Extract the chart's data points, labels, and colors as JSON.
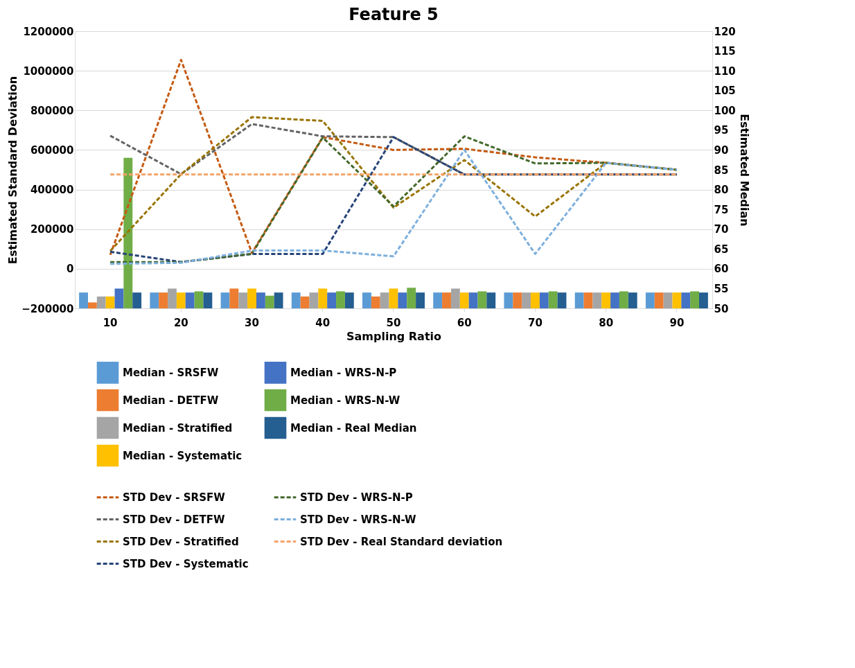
{
  "chart_data": {
    "type": "bar",
    "title": "Feature 5",
    "xlabel": "Sampling Ratio",
    "ylabel": "Estimated Standard Deviation",
    "y2label": "Estimated Median",
    "categories": [
      "10",
      "20",
      "30",
      "40",
      "50",
      "60",
      "70",
      "80",
      "90"
    ],
    "ylim": [
      -200000,
      1200000
    ],
    "yticks": [
      -200000,
      0,
      200000,
      400000,
      600000,
      800000,
      1000000,
      1200000
    ],
    "y2lim": [
      50,
      120
    ],
    "y2ticks": [
      50,
      55,
      60,
      65,
      70,
      75,
      80,
      85,
      90,
      95,
      100,
      105,
      110,
      115,
      120
    ],
    "grid": "y",
    "legend": "bottom",
    "series": [
      {
        "name": "Median - SRSFW",
        "axis": "y2",
        "color": "#5b9bd5",
        "values": [
          54,
          54,
          54,
          54,
          54,
          54,
          54,
          54,
          54
        ]
      },
      {
        "name": "Median - DETFW",
        "axis": "y2",
        "color": "#ed7d31",
        "values": [
          51.5,
          54,
          55,
          53,
          53,
          54,
          54,
          54,
          54
        ]
      },
      {
        "name": "Median - Stratified",
        "axis": "y2",
        "color": "#a5a5a5",
        "values": [
          53,
          55,
          54,
          54,
          54,
          55,
          54,
          54,
          54
        ]
      },
      {
        "name": "Median - Systematic",
        "axis": "y2",
        "color": "#ffc000",
        "values": [
          53,
          54,
          55,
          55,
          55,
          54,
          54,
          54,
          54
        ]
      },
      {
        "name": "Median - WRS-N-P",
        "axis": "y2",
        "color": "#4472c4",
        "values": [
          55,
          54,
          54,
          54,
          54,
          54,
          54,
          54,
          54
        ]
      },
      {
        "name": "Median - WRS-N-W",
        "axis": "y2",
        "color": "#70ad47",
        "values": [
          88,
          54.3,
          53.2,
          54.3,
          55.2,
          54.3,
          54.3,
          54.3,
          54.3
        ]
      },
      {
        "name": "Median - Real Median",
        "axis": "y2",
        "color": "#255e91",
        "values": [
          54,
          54,
          54,
          54,
          54,
          54,
          54,
          54,
          54
        ]
      },
      {
        "name": "STD Dev - SRSFW",
        "type": "line",
        "line_style": "dashed",
        "color": "#c55a11",
        "values": [
          70000,
          1055000,
          80000,
          665000,
          600000,
          606000,
          563000,
          535000,
          500000
        ]
      },
      {
        "name": "STD Dev - DETFW",
        "type": "line",
        "line_style": "dashed",
        "color": "#636363",
        "values": [
          672000,
          478000,
          731000,
          669000,
          665000,
          476000,
          476000,
          476000,
          476000
        ]
      },
      {
        "name": "STD Dev - Stratified",
        "type": "line",
        "line_style": "dashed",
        "color": "#997300",
        "values": [
          90000,
          478000,
          766000,
          747000,
          309000,
          549000,
          264000,
          535000,
          500000
        ]
      },
      {
        "name": "STD Dev - Systematic",
        "type": "line",
        "line_style": "dashed",
        "color": "#264478",
        "values": [
          86000,
          34000,
          75000,
          75000,
          665000,
          476000,
          476000,
          476000,
          476000
        ]
      },
      {
        "name": "STD Dev - WRS-N-P",
        "type": "line",
        "line_style": "dashed",
        "color": "#43682b",
        "values": [
          34000,
          34000,
          75000,
          663000,
          315000,
          669000,
          532000,
          535000,
          500000
        ]
      },
      {
        "name": "STD Dev - WRS-N-W",
        "type": "line",
        "line_style": "dashed",
        "color": "#7cafdd",
        "values": [
          25000,
          30000,
          92000,
          92000,
          63000,
          600000,
          75000,
          535000,
          500000
        ]
      },
      {
        "name": "STD Dev - Real Standard deviation",
        "type": "line",
        "line_style": "dashed",
        "color": "#f4a46a",
        "values": [
          476000,
          476000,
          476000,
          476000,
          476000,
          476000,
          476000,
          476000,
          476000
        ]
      }
    ]
  }
}
